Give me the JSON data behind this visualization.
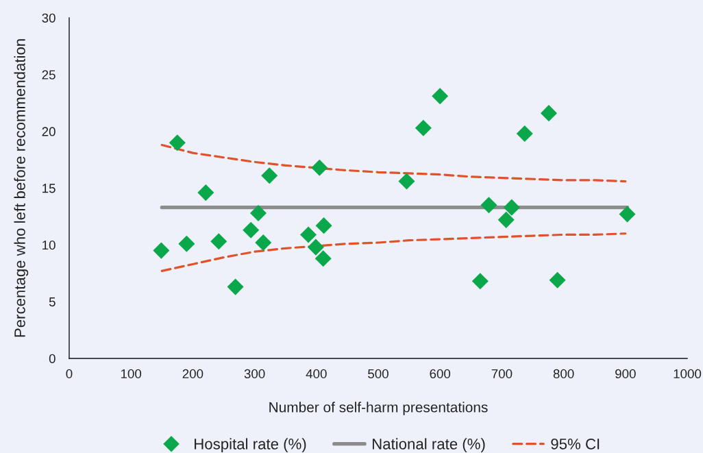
{
  "chart_data": {
    "type": "scatter",
    "xlabel": "Number of self-harm presentations",
    "ylabel": "Percentage who left before recommendation",
    "xlim": [
      0,
      1000
    ],
    "ylim": [
      0,
      30
    ],
    "xticks": [
      0,
      100,
      200,
      300,
      400,
      500,
      600,
      700,
      800,
      900,
      1000
    ],
    "yticks": [
      0,
      5,
      10,
      15,
      20,
      25,
      30
    ],
    "legend": "bottom",
    "series": [
      {
        "name": "Hospital rate (%)",
        "marker": "diamond",
        "color": "#0aa84a",
        "x": [
          149,
          175,
          190,
          221,
          242,
          269,
          294,
          306,
          314,
          324,
          387,
          399,
          405,
          412,
          411,
          546,
          573,
          600,
          665,
          679,
          707,
          716,
          737,
          776,
          790,
          903
        ],
        "values": [
          9.5,
          19.0,
          10.1,
          14.6,
          10.3,
          6.3,
          11.3,
          12.8,
          10.2,
          16.1,
          10.9,
          9.8,
          16.8,
          11.7,
          8.8,
          15.6,
          20.3,
          23.1,
          6.8,
          13.5,
          12.2,
          13.3,
          19.8,
          21.6,
          6.9,
          12.7
        ]
      },
      {
        "name": "National rate (%)",
        "type": "line",
        "line_style": "solid",
        "color": "#8c8c8c",
        "x": [
          150,
          903
        ],
        "values": [
          13.3,
          13.3
        ]
      },
      {
        "name": "95% CI",
        "type": "line",
        "line_style": "dashed",
        "color": "#e0522a",
        "x": [
          150,
          200,
          250,
          300,
          350,
          440,
          500,
          550,
          600,
          650,
          700,
          750,
          800,
          850,
          900
        ],
        "values": [
          18.8,
          18.1,
          17.7,
          17.3,
          17.0,
          16.6,
          16.4,
          16.3,
          16.2,
          16.0,
          15.9,
          15.8,
          15.7,
          15.7,
          15.6
        ]
      },
      {
        "type": "line",
        "line_style": "dashed",
        "color": "#e0522a",
        "x": [
          150,
          200,
          250,
          300,
          350,
          450,
          500,
          550,
          600,
          650,
          700,
          750,
          800,
          850,
          900
        ],
        "values": [
          7.7,
          8.3,
          8.9,
          9.4,
          9.7,
          10.1,
          10.2,
          10.4,
          10.5,
          10.6,
          10.7,
          10.8,
          10.9,
          10.9,
          11.0
        ]
      }
    ]
  }
}
